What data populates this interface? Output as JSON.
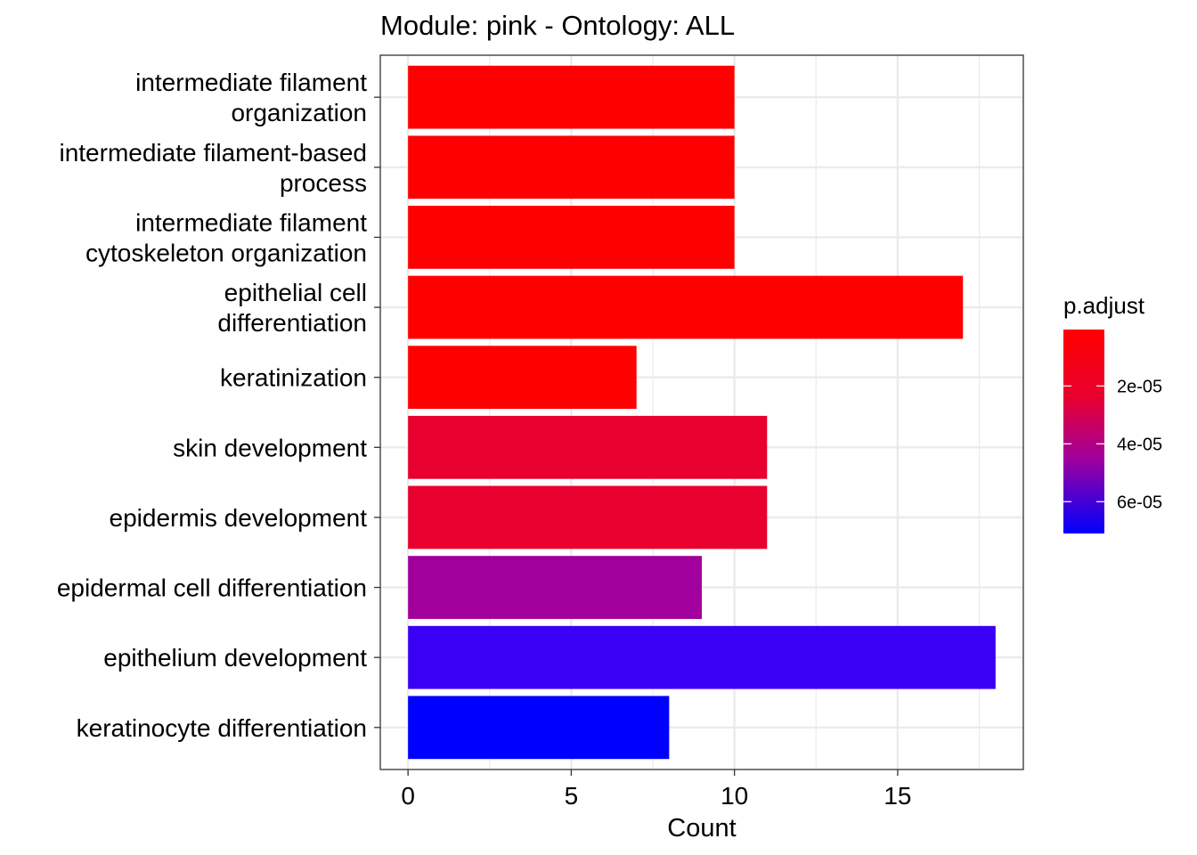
{
  "chart_data": {
    "type": "bar",
    "orientation": "horizontal",
    "title": "Module: pink - Ontology: ALL",
    "xlabel": "Count",
    "ylabel": "",
    "xlim": [
      -0.85,
      18.85
    ],
    "xticks": [
      0,
      5,
      10,
      15
    ],
    "grid": true,
    "legend": {
      "title": "p.adjust",
      "placement": "right",
      "min": 5e-07,
      "max": 7.1e-05,
      "low_color": "#FF0000",
      "high_color": "#0000FF",
      "ticks": [
        {
          "value": 2e-05,
          "label": "2e-05"
        },
        {
          "value": 4e-05,
          "label": "4e-05"
        },
        {
          "value": 6e-05,
          "label": "6e-05"
        }
      ]
    },
    "categories": [
      [
        "intermediate filament",
        "organization"
      ],
      [
        "intermediate filament-based",
        "process"
      ],
      [
        "intermediate filament",
        "cytoskeleton organization"
      ],
      [
        "epithelial cell",
        "differentiation"
      ],
      [
        "keratinization"
      ],
      [
        "skin development"
      ],
      [
        "epidermis development"
      ],
      [
        "epidermal cell differentiation"
      ],
      [
        "epithelium development"
      ],
      [
        "keratinocyte differentiation"
      ]
    ],
    "values": [
      10,
      10,
      10,
      17,
      7,
      11,
      11,
      9,
      18,
      8
    ],
    "colors": [
      "#FF0000",
      "#FF0000",
      "#FF0000",
      "#FF0000",
      "#FF0000",
      "#E8002E",
      "#E8002E",
      "#A1009C",
      "#3A00F5",
      "#0000FF"
    ]
  }
}
